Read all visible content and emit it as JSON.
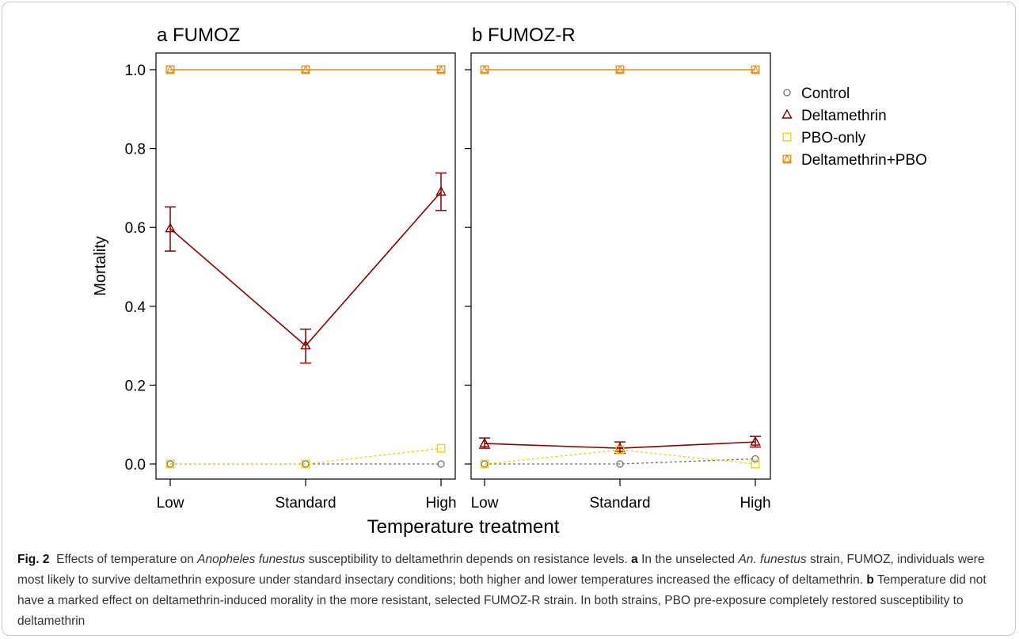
{
  "chart_data": [
    {
      "type": "line",
      "panel_label": "a FUMOZ",
      "categories": [
        "Low",
        "Standard",
        "High"
      ],
      "ylabel": "Mortality",
      "ylim": [
        0,
        1
      ],
      "yticks": [
        "0.0",
        "0.2",
        "0.4",
        "0.6",
        "0.8",
        "1.0"
      ],
      "series": [
        {
          "name": "Control",
          "color": "#707070",
          "marker": "circle",
          "dashed": true,
          "values": [
            0.0,
            0.0,
            0.0
          ]
        },
        {
          "name": "Deltamethrin",
          "color": "#8b0000",
          "marker": "triangle",
          "dashed": false,
          "values": [
            0.597,
            0.3,
            0.69
          ],
          "err_low": [
            0.54,
            0.256,
            0.643
          ],
          "err_high": [
            0.652,
            0.342,
            0.738
          ]
        },
        {
          "name": "PBO-only",
          "color": "#f5d000",
          "marker": "square",
          "dashed": true,
          "values": [
            0.0,
            0.0,
            0.04
          ]
        },
        {
          "name": "Deltamethrin+PBO",
          "color": "#ee8a10",
          "marker": "triangle-square",
          "dashed": false,
          "values": [
            1.0,
            1.0,
            1.0
          ]
        }
      ]
    },
    {
      "type": "line",
      "panel_label": "b FUMOZ-R",
      "categories": [
        "Low",
        "Standard",
        "High"
      ],
      "ylabel": "Mortality",
      "ylim": [
        0,
        1
      ],
      "series": [
        {
          "name": "Control",
          "color": "#707070",
          "marker": "circle",
          "dashed": true,
          "values": [
            0.0,
            0.0,
            0.013
          ]
        },
        {
          "name": "Deltamethrin",
          "color": "#8b0000",
          "marker": "triangle",
          "dashed": false,
          "values": [
            0.052,
            0.04,
            0.056
          ],
          "err_low": [
            0.04,
            0.027,
            0.043
          ],
          "err_high": [
            0.066,
            0.056,
            0.07
          ]
        },
        {
          "name": "PBO-only",
          "color": "#f5d000",
          "marker": "square",
          "dashed": true,
          "values": [
            0.0,
            0.036,
            0.0
          ]
        },
        {
          "name": "Deltamethrin+PBO",
          "color": "#ee8a10",
          "marker": "triangle-square",
          "dashed": false,
          "values": [
            1.0,
            1.0,
            1.0
          ]
        }
      ]
    }
  ],
  "xlabel": "Temperature treatment",
  "legend": {
    "placement": "right",
    "items": [
      {
        "label": "Control",
        "marker": "circle",
        "color": "#707070"
      },
      {
        "label": "Deltamethrin",
        "marker": "triangle",
        "color": "#8b0000"
      },
      {
        "label": "PBO-only",
        "marker": "square",
        "color": "#f5d000"
      },
      {
        "label": "Deltamethrin+PBO",
        "marker": "triangle-square",
        "color": "#ee8a10"
      }
    ]
  },
  "caption": {
    "fig_label": "Fig. 2",
    "t1": "Effects of temperature on ",
    "species": "Anopheles funestus",
    "t2": " susceptibility to deltamethrin depends on resistance levels. ",
    "a_label": "a",
    "t3": " In the unselected ",
    "an_funestus": "An. funestus",
    "t4": " strain, FUMOZ, individuals were most likely to survive deltamethrin exposure under standard insectary conditions; both higher and lower temperatures increased the efficacy of deltamethrin. ",
    "b_label": "b",
    "t5": " Temperature did not have a marked effect on deltamethrin-induced morality in the more resistant, selected FUMOZ-R strain. In both strains, PBO pre-exposure completely restored susceptibility to deltamethrin"
  }
}
